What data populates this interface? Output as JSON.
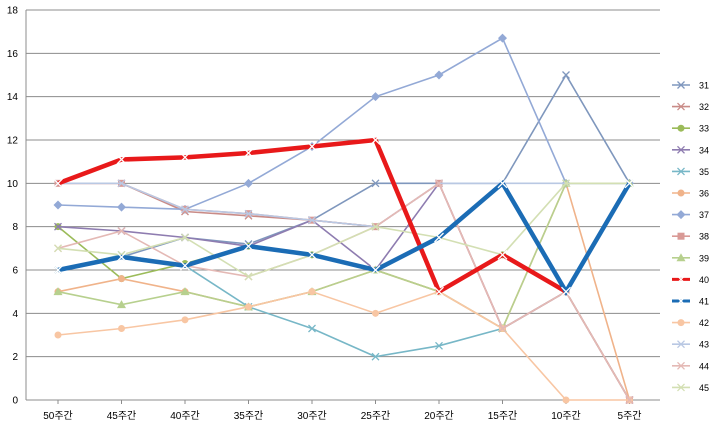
{
  "chart_data": {
    "type": "line",
    "title": "",
    "xlabel": "",
    "ylabel": "",
    "ylim": [
      0,
      18
    ],
    "ytick_step": 2,
    "grid": true,
    "legend_placement": "right",
    "categories": [
      "50주간",
      "45주간",
      "40주간",
      "35주간",
      "30주간",
      "25주간",
      "20주간",
      "15주간",
      "10주간",
      "5주간"
    ],
    "series": [
      {
        "name": "31",
        "color": "#7F97BD",
        "marker": "x",
        "width": 1.6,
        "values": [
          6.0,
          6.6,
          7.5,
          7.2,
          8.3,
          10.0,
          10.0,
          10.0,
          15.0,
          10.0
        ]
      },
      {
        "name": "32",
        "color": "#C98B87",
        "marker": "x",
        "width": 1.6,
        "values": [
          10.0,
          10.0,
          8.7,
          8.5,
          8.3,
          8.0,
          10.0,
          3.3,
          5.0,
          0.0
        ]
      },
      {
        "name": "33",
        "color": "#9BBB59",
        "marker": "circle",
        "width": 1.6,
        "values": [
          8.0,
          5.6,
          6.3,
          7.1,
          6.7,
          6.0,
          5.0,
          6.7,
          5.0,
          0.0
        ]
      },
      {
        "name": "34",
        "color": "#8E7CB0",
        "marker": "x",
        "width": 1.6,
        "values": [
          8.0,
          7.8,
          7.5,
          7.1,
          8.3,
          6.0,
          10.0,
          3.3,
          5.0,
          0.0
        ]
      },
      {
        "name": "35",
        "color": "#77B7C7",
        "marker": "x",
        "width": 1.6,
        "values": [
          6.0,
          6.7,
          6.2,
          4.3,
          3.3,
          2.0,
          2.5,
          3.3,
          5.0,
          10.0
        ]
      },
      {
        "name": "36",
        "color": "#F0B38A",
        "marker": "circle",
        "width": 1.6,
        "values": [
          5.0,
          5.6,
          5.0,
          4.3,
          5.0,
          6.0,
          5.0,
          3.3,
          10.0,
          0.0
        ]
      },
      {
        "name": "37",
        "color": "#93A9D6",
        "marker": "diamond",
        "width": 1.6,
        "values": [
          9.0,
          8.9,
          8.8,
          10.0,
          11.7,
          14.0,
          15.0,
          16.7,
          10.0,
          10.0
        ]
      },
      {
        "name": "38",
        "color": "#D99A96",
        "marker": "square",
        "width": 1.6,
        "values": [
          10.0,
          10.0,
          8.8,
          8.6,
          8.3,
          8.0,
          10.0,
          3.3,
          5.0,
          0.0
        ]
      },
      {
        "name": "39",
        "color": "#B7D08E",
        "marker": "triangle",
        "width": 1.6,
        "values": [
          5.0,
          4.4,
          5.0,
          4.3,
          5.0,
          6.0,
          5.0,
          3.3,
          10.0,
          10.0
        ]
      },
      {
        "name": "40",
        "color": "#E8191A",
        "marker": "x",
        "width": 4.5,
        "values": [
          10.0,
          11.1,
          11.2,
          11.4,
          11.7,
          12.0,
          5.0,
          6.7,
          5.0,
          null
        ]
      },
      {
        "name": "41",
        "color": "#1B6CB5",
        "marker": "x",
        "width": 4.5,
        "values": [
          6.0,
          6.6,
          6.2,
          7.1,
          6.7,
          6.0,
          7.5,
          10.0,
          5.0,
          10.0
        ]
      },
      {
        "name": "42",
        "color": "#F8C6A3",
        "marker": "circle",
        "width": 1.6,
        "values": [
          3.0,
          3.3,
          3.7,
          4.3,
          5.0,
          4.0,
          5.0,
          3.3,
          0.0,
          0.0
        ]
      },
      {
        "name": "43",
        "color": "#B9C8E3",
        "marker": "x",
        "width": 1.6,
        "values": [
          10.0,
          10.0,
          8.8,
          8.6,
          8.3,
          8.0,
          10.0,
          10.0,
          10.0,
          10.0
        ]
      },
      {
        "name": "44",
        "color": "#E4B9B5",
        "marker": "x",
        "width": 1.6,
        "values": [
          7.0,
          7.8,
          6.2,
          5.7,
          6.7,
          8.0,
          10.0,
          3.3,
          5.0,
          0.0
        ]
      },
      {
        "name": "45",
        "color": "#D3DFB3",
        "marker": "x",
        "width": 1.6,
        "values": [
          7.0,
          6.7,
          7.5,
          5.7,
          6.7,
          8.0,
          7.5,
          6.7,
          10.0,
          10.0
        ]
      }
    ]
  }
}
